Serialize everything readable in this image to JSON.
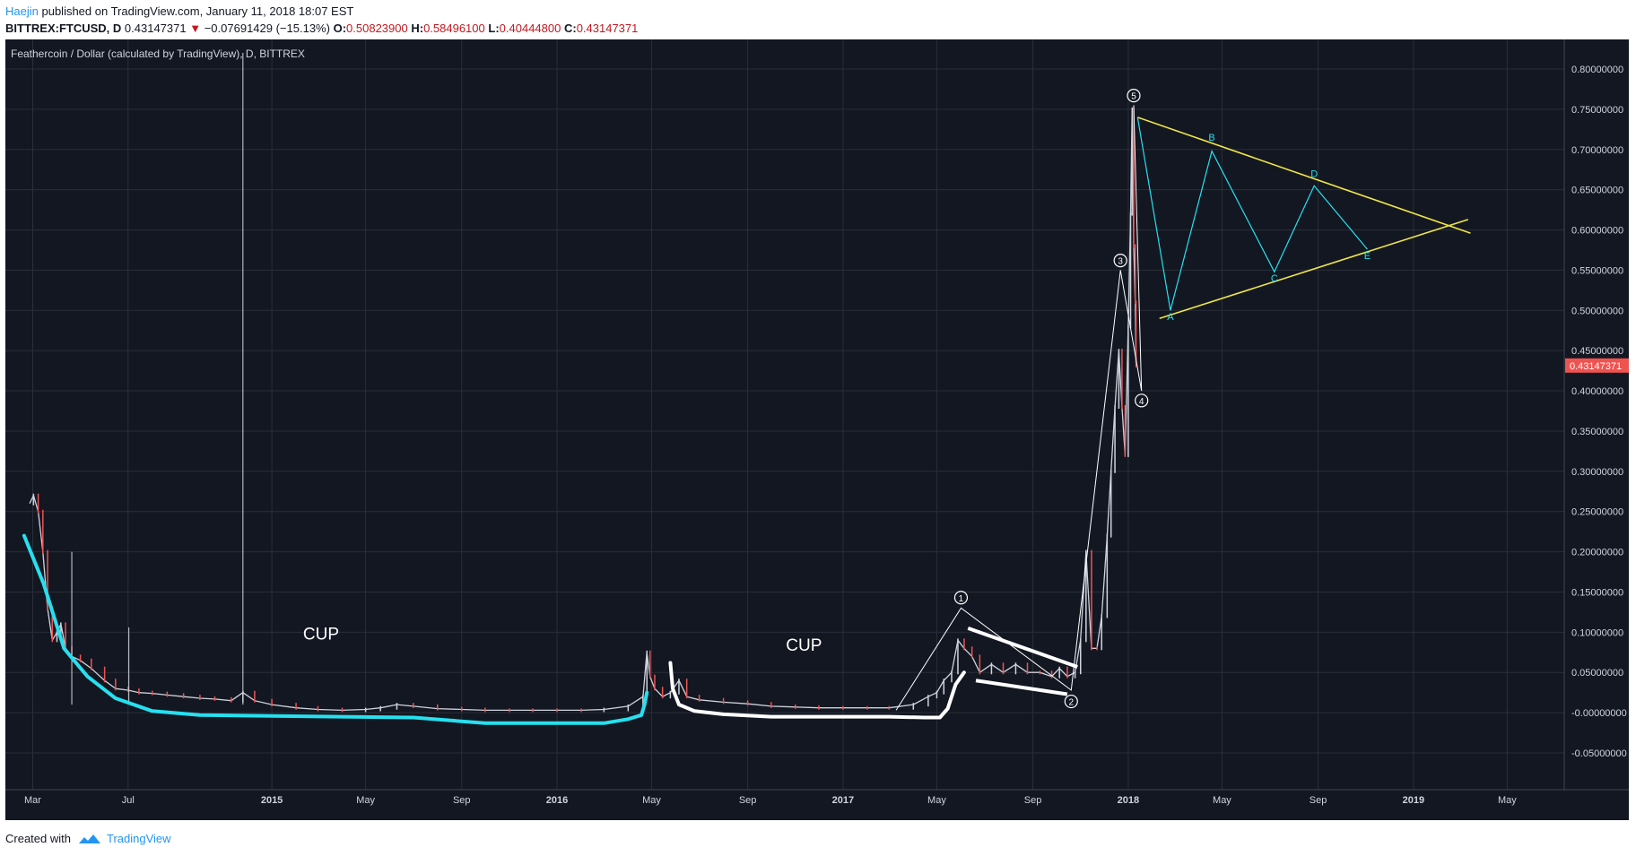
{
  "header": {
    "author": "Haejin",
    "published_text": "published on TradingView.com, January 11, 2018 18:07 EST",
    "symbol": "BITTREX:FTCUSD, D",
    "last": "0.43147371",
    "change_arrow": "▼",
    "change": "−0.07691429 (−15.13%)",
    "o_label": "O:",
    "o": "0.50823900",
    "h_label": "H:",
    "h": "0.58496100",
    "l_label": "L:",
    "l": "0.40444800",
    "c_label": "C:",
    "c": "0.43147371"
  },
  "footer": {
    "created_with": "Created with",
    "brand": "TradingView",
    "icon": "tradingview-logo-icon"
  },
  "colors": {
    "background": "#131722",
    "grid": "#2a2e39",
    "price_up": "#cfd3dc",
    "price_down": "#ef5350",
    "cyan": "#26e0ef",
    "white": "#ffffff",
    "yellow": "#f0e645",
    "badge": "#ef5350"
  },
  "chart_data": {
    "type": "line",
    "title": "Feathercoin / Dollar (calculated by TradingView), D, BITTREX",
    "ylim": [
      -0.08,
      0.83
    ],
    "y_ticks": [
      -0.05,
      0,
      0.05,
      0.1,
      0.15,
      0.2,
      0.25,
      0.3,
      0.35,
      0.4,
      0.45,
      0.5,
      0.55,
      0.6,
      0.65,
      0.7,
      0.75,
      0.8
    ],
    "y_tick_labels": [
      "-0.05000000",
      "-0.00000000",
      "0.05000000",
      "0.10000000",
      "0.15000000",
      "0.20000000",
      "0.25000000",
      "0.30000000",
      "0.35000000",
      "0.40000000",
      "0.45000000",
      "0.50000000",
      "0.55000000",
      "0.60000000",
      "0.65000000",
      "0.70000000",
      "0.75000000",
      "0.80000000"
    ],
    "last_price_label": "0.43147371",
    "last_price": 0.43147371,
    "x_axis": {
      "start": "2014-01-25",
      "end": "2019-07-13",
      "ticks": [
        {
          "date": "2014-03-01",
          "label": "Mar",
          "bold": false
        },
        {
          "date": "2014-07-01",
          "label": "Jul",
          "bold": false
        },
        {
          "date": "2015-01-01",
          "label": "2015",
          "bold": true
        },
        {
          "date": "2015-05-01",
          "label": "May",
          "bold": false
        },
        {
          "date": "2015-09-01",
          "label": "Sep",
          "bold": false
        },
        {
          "date": "2016-01-01",
          "label": "2016",
          "bold": true
        },
        {
          "date": "2016-05-01",
          "label": "May",
          "bold": false
        },
        {
          "date": "2016-09-01",
          "label": "Sep",
          "bold": false
        },
        {
          "date": "2017-01-01",
          "label": "2017",
          "bold": true
        },
        {
          "date": "2017-05-01",
          "label": "May",
          "bold": false
        },
        {
          "date": "2017-09-01",
          "label": "Sep",
          "bold": false
        },
        {
          "date": "2018-01-01",
          "label": "2018",
          "bold": true
        },
        {
          "date": "2018-05-01",
          "label": "May",
          "bold": false
        },
        {
          "date": "2018-09-01",
          "label": "Sep",
          "bold": false
        },
        {
          "date": "2019-01-01",
          "label": "2019",
          "bold": true
        },
        {
          "date": "2019-05-01",
          "label": "May",
          "bold": false
        }
      ]
    },
    "series": [
      {
        "values": [
          [
            "2014-02-25",
            0.26
          ],
          [
            "2014-03-02",
            0.27
          ],
          [
            "2014-03-08",
            0.25
          ],
          [
            "2014-03-14",
            0.2
          ],
          [
            "2014-03-20",
            0.13
          ],
          [
            "2014-03-26",
            0.09
          ],
          [
            "2014-04-01",
            0.1
          ],
          [
            "2014-04-06",
            0.11
          ],
          [
            "2014-04-12",
            0.08
          ],
          [
            "2014-04-20",
            0.07
          ],
          [
            "2014-05-01",
            0.065
          ],
          [
            "2014-05-15",
            0.055
          ],
          [
            "2014-06-01",
            0.04
          ],
          [
            "2014-06-15",
            0.03
          ],
          [
            "2014-07-01",
            0.028
          ],
          [
            "2014-07-15",
            0.025
          ],
          [
            "2014-08-01",
            0.024
          ],
          [
            "2014-08-20",
            0.022
          ],
          [
            "2014-09-10",
            0.02
          ],
          [
            "2014-10-01",
            0.018
          ],
          [
            "2014-10-20",
            0.017
          ],
          [
            "2014-11-10",
            0.015
          ],
          [
            "2014-11-25",
            0.025
          ],
          [
            "2014-12-10",
            0.015
          ],
          [
            "2015-01-01",
            0.01
          ],
          [
            "2015-02-01",
            0.006
          ],
          [
            "2015-03-01",
            0.004
          ],
          [
            "2015-04-01",
            0.003
          ],
          [
            "2015-05-01",
            0.004
          ],
          [
            "2015-05-20",
            0.006
          ],
          [
            "2015-06-10",
            0.01
          ],
          [
            "2015-07-01",
            0.008
          ],
          [
            "2015-08-01",
            0.005
          ],
          [
            "2015-09-01",
            0.004
          ],
          [
            "2015-10-01",
            0.003
          ],
          [
            "2015-11-01",
            0.003
          ],
          [
            "2015-12-01",
            0.003
          ],
          [
            "2016-01-01",
            0.003
          ],
          [
            "2016-02-01",
            0.003
          ],
          [
            "2016-03-01",
            0.004
          ],
          [
            "2016-04-01",
            0.008
          ],
          [
            "2016-04-20",
            0.02
          ],
          [
            "2016-04-25",
            0.075
          ],
          [
            "2016-04-29",
            0.045
          ],
          [
            "2016-05-05",
            0.03
          ],
          [
            "2016-05-15",
            0.02
          ],
          [
            "2016-05-25",
            0.025
          ],
          [
            "2016-06-05",
            0.04
          ],
          [
            "2016-06-15",
            0.02
          ],
          [
            "2016-07-01",
            0.016
          ],
          [
            "2016-08-01",
            0.013
          ],
          [
            "2016-09-01",
            0.011
          ],
          [
            "2016-10-01",
            0.008
          ],
          [
            "2016-11-01",
            0.007
          ],
          [
            "2016-12-01",
            0.006
          ],
          [
            "2017-01-01",
            0.006
          ],
          [
            "2017-02-01",
            0.006
          ],
          [
            "2017-03-01",
            0.006
          ],
          [
            "2017-04-01",
            0.01
          ],
          [
            "2017-04-20",
            0.02
          ],
          [
            "2017-05-01",
            0.025
          ],
          [
            "2017-05-10",
            0.04
          ],
          [
            "2017-05-20",
            0.05
          ],
          [
            "2017-05-28",
            0.09
          ],
          [
            "2017-06-05",
            0.08
          ],
          [
            "2017-06-15",
            0.07
          ],
          [
            "2017-06-25",
            0.05
          ],
          [
            "2017-07-10",
            0.06
          ],
          [
            "2017-07-25",
            0.05
          ],
          [
            "2017-08-10",
            0.06
          ],
          [
            "2017-08-25",
            0.05
          ],
          [
            "2017-09-10",
            0.05
          ],
          [
            "2017-09-25",
            0.045
          ],
          [
            "2017-10-05",
            0.055
          ],
          [
            "2017-10-15",
            0.045
          ],
          [
            "2017-10-25",
            0.05
          ],
          [
            "2017-11-01",
            0.09
          ],
          [
            "2017-11-08",
            0.2
          ],
          [
            "2017-11-15",
            0.08
          ],
          [
            "2017-11-22",
            0.08
          ],
          [
            "2017-11-28",
            0.12
          ],
          [
            "2017-12-05",
            0.22
          ],
          [
            "2017-12-10",
            0.3
          ],
          [
            "2017-12-15",
            0.38
          ],
          [
            "2017-12-20",
            0.45
          ],
          [
            "2017-12-24",
            0.38
          ],
          [
            "2017-12-28",
            0.32
          ],
          [
            "2018-01-01",
            0.48
          ],
          [
            "2018-01-04",
            0.62
          ],
          [
            "2018-01-06",
            0.75
          ],
          [
            "2018-01-08",
            0.58
          ],
          [
            "2018-01-10",
            0.51
          ],
          [
            "2018-01-11",
            0.43147371
          ]
        ]
      }
    ],
    "annotations": {
      "text_labels": [
        {
          "text": "CUP",
          "date": "2015-02-10",
          "y": 0.091
        },
        {
          "text": "CUP",
          "date": "2016-10-20",
          "y": 0.077
        }
      ],
      "wave_labels": [
        {
          "text": "1",
          "date": "2017-06-01",
          "y": 0.143
        },
        {
          "text": "2",
          "date": "2017-10-20",
          "y": 0.014
        },
        {
          "text": "3",
          "date": "2017-12-22",
          "y": 0.562
        },
        {
          "text": "4",
          "date": "2018-01-18",
          "y": 0.388
        },
        {
          "text": "5",
          "date": "2018-01-08",
          "y": 0.767
        }
      ],
      "abcde_labels": [
        {
          "text": "A",
          "date": "2018-02-24",
          "y": 0.488
        },
        {
          "text": "B",
          "date": "2018-04-18",
          "y": 0.711
        },
        {
          "text": "C",
          "date": "2018-07-07",
          "y": 0.536
        },
        {
          "text": "D",
          "date": "2018-08-27",
          "y": 0.666
        },
        {
          "text": "E",
          "date": "2018-11-03",
          "y": 0.564
        }
      ]
    }
  }
}
